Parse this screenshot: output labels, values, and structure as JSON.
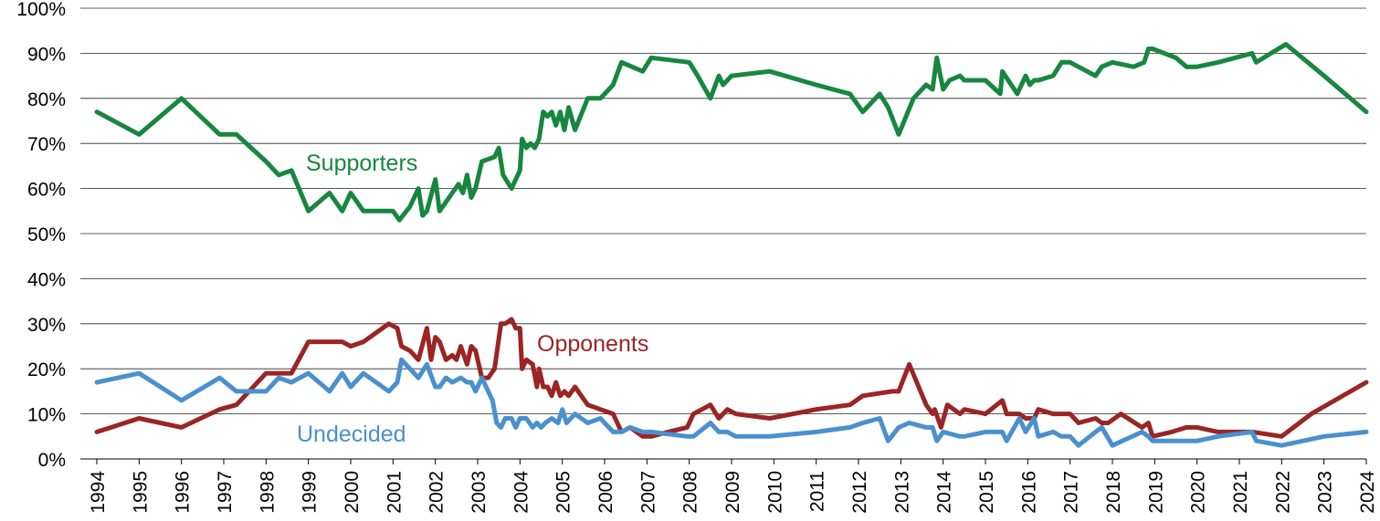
{
  "chart_data": {
    "type": "line",
    "title": "",
    "xlabel": "",
    "ylabel": "",
    "xlim": [
      1994,
      2024
    ],
    "ylim": [
      0,
      100
    ],
    "grid": true,
    "legend": "inline labels next to lines",
    "y_ticks": [
      "0%",
      "10%",
      "20%",
      "30%",
      "40%",
      "50%",
      "60%",
      "70%",
      "80%",
      "90%",
      "100%"
    ],
    "x_ticks": [
      "1994",
      "1995",
      "1996",
      "1997",
      "1998",
      "1999",
      "2000",
      "2001",
      "2002",
      "2003",
      "2004",
      "2005",
      "2006",
      "2007",
      "2008",
      "2009",
      "2010",
      "2011",
      "2012",
      "2013",
      "2014",
      "2015",
      "2016",
      "2017",
      "2018",
      "2019",
      "2020",
      "2021",
      "2022",
      "2023",
      "2024"
    ],
    "series": [
      {
        "name": "Supporters",
        "color": "#17873f",
        "x": [
          1994,
          1995,
          1996,
          1996.9,
          1997.3,
          1998,
          1998.3,
          1998.6,
          1999,
          1999.5,
          1999.8,
          2000,
          2000.3,
          2001,
          2001.15,
          2001.4,
          2001.6,
          2001.7,
          2001.8,
          2002,
          2002.1,
          2002.25,
          2002.4,
          2002.55,
          2002.65,
          2002.75,
          2002.85,
          2002.95,
          2003.1,
          2003.4,
          2003.5,
          2003.6,
          2003.8,
          2004,
          2004.05,
          2004.15,
          2004.25,
          2004.35,
          2004.45,
          2004.55,
          2004.65,
          2004.75,
          2004.85,
          2004.95,
          2005.05,
          2005.15,
          2005.3,
          2005.6,
          2005.9,
          2006.2,
          2006.4,
          2006.9,
          2007.1,
          2008,
          2008.2,
          2008.5,
          2008.7,
          2008.8,
          2009,
          2009.9,
          2011,
          2011.8,
          2012.1,
          2012.5,
          2012.7,
          2012.95,
          2013.3,
          2013.6,
          2013.75,
          2013.85,
          2014,
          2014.15,
          2014.4,
          2014.5,
          2015,
          2015.35,
          2015.4,
          2015.75,
          2015.95,
          2016.05,
          2016.15,
          2016.25,
          2016.6,
          2016.8,
          2017,
          2017.2,
          2017.6,
          2017.75,
          2018,
          2018.5,
          2018.75,
          2018.85,
          2018.95,
          2019.5,
          2019.75,
          2020,
          2020.5,
          2021.3,
          2021.4,
          2022.1,
          2023,
          2024
        ],
        "values": [
          77,
          72,
          80,
          72,
          72,
          66,
          63,
          64,
          55,
          59,
          55,
          59,
          55,
          55,
          53,
          56,
          60,
          54,
          55,
          62,
          55,
          57,
          59,
          61,
          59,
          63,
          58,
          60,
          66,
          67,
          69,
          63,
          60,
          64,
          71,
          69,
          70,
          69,
          71,
          77,
          76,
          77,
          74,
          77,
          73,
          78,
          73,
          80,
          80,
          83,
          88,
          86,
          89,
          88,
          85,
          80,
          85,
          83,
          85,
          86,
          83,
          81,
          77,
          81,
          78,
          72,
          80,
          83,
          82,
          89,
          82,
          84,
          85,
          84,
          84,
          81,
          86,
          81,
          85,
          83,
          84,
          84,
          85,
          88,
          88,
          87,
          85,
          87,
          88,
          87,
          88,
          91,
          91,
          89,
          87,
          87,
          88,
          90,
          88,
          92,
          85,
          77
        ]
      },
      {
        "name": "Opponents",
        "color": "#9b2424",
        "x": [
          1994,
          1995,
          1996,
          1996.9,
          1997.3,
          1998,
          1998.6,
          1999,
          1999.8,
          2000,
          2000.3,
          2000.9,
          2001.1,
          2001.2,
          2001.4,
          2001.6,
          2001.8,
          2001.9,
          2002,
          2002.1,
          2002.25,
          2002.4,
          2002.5,
          2002.6,
          2002.75,
          2002.85,
          2002.95,
          2003.1,
          2003.25,
          2003.4,
          2003.55,
          2003.65,
          2003.8,
          2003.9,
          2004,
          2004.05,
          2004.15,
          2004.3,
          2004.4,
          2004.45,
          2004.55,
          2004.65,
          2004.75,
          2004.85,
          2004.95,
          2005.05,
          2005.15,
          2005.3,
          2005.6,
          2005.9,
          2006.2,
          2006.4,
          2006.6,
          2006.9,
          2007.1,
          2007.5,
          2007.95,
          2008.1,
          2008.5,
          2008.7,
          2008.9,
          2009.1,
          2009.9,
          2011,
          2011.8,
          2012.1,
          2012.8,
          2012.95,
          2013.2,
          2013.6,
          2013.75,
          2013.8,
          2013.95,
          2014.1,
          2014.4,
          2014.5,
          2015,
          2015.4,
          2015.5,
          2015.8,
          2015.95,
          2016.15,
          2016.25,
          2016.6,
          2016.8,
          2017,
          2017.2,
          2017.6,
          2017.75,
          2017.9,
          2018.2,
          2018.7,
          2018.85,
          2018.95,
          2019.4,
          2019.75,
          2020,
          2020.5,
          2021.3,
          2022,
          2022.7,
          2024
        ],
        "values": [
          6,
          9,
          7,
          11,
          12,
          19,
          19,
          26,
          26,
          25,
          26,
          30,
          29,
          25,
          24,
          22,
          29,
          22,
          27,
          26,
          22,
          23,
          22,
          25,
          21,
          25,
          24,
          18,
          18,
          20,
          30,
          30,
          31,
          29,
          29,
          20,
          22,
          21,
          16,
          20,
          16,
          16,
          14,
          17,
          14,
          15,
          14,
          16,
          12,
          11,
          10,
          6,
          7,
          5,
          5,
          6,
          7,
          10,
          12,
          9,
          11,
          10,
          9,
          11,
          12,
          14,
          15,
          15,
          21,
          12,
          10,
          11,
          7,
          12,
          10,
          11,
          10,
          13,
          10,
          10,
          9,
          9,
          11,
          10,
          10,
          10,
          8,
          9,
          8,
          8,
          10,
          7,
          8,
          5,
          6,
          7,
          7,
          6,
          6,
          5,
          10,
          17
        ]
      },
      {
        "name": "Undecided",
        "color": "#4a90cf",
        "x": [
          1994,
          1995,
          1996,
          1996.9,
          1997.3,
          1998,
          1998.3,
          1998.6,
          1999,
          1999.5,
          1999.8,
          2000,
          2000.3,
          2000.9,
          2001.1,
          2001.2,
          2001.4,
          2001.6,
          2001.8,
          2002,
          2002.1,
          2002.25,
          2002.4,
          2002.6,
          2002.75,
          2002.85,
          2002.95,
          2003.1,
          2003.35,
          2003.45,
          2003.55,
          2003.65,
          2003.8,
          2003.9,
          2004,
          2004.05,
          2004.15,
          2004.3,
          2004.4,
          2004.5,
          2004.6,
          2004.75,
          2004.9,
          2005,
          2005.1,
          2005.3,
          2005.6,
          2005.9,
          2006.2,
          2006.4,
          2006.6,
          2006.9,
          2007.1,
          2007.95,
          2008.1,
          2008.5,
          2008.7,
          2008.9,
          2009.1,
          2009.9,
          2011,
          2011.8,
          2012.1,
          2012.5,
          2012.7,
          2012.95,
          2013.2,
          2013.6,
          2013.75,
          2013.85,
          2014,
          2014.4,
          2014.5,
          2015,
          2015.4,
          2015.5,
          2015.8,
          2015.95,
          2016.15,
          2016.25,
          2016.6,
          2016.8,
          2017,
          2017.2,
          2017.6,
          2017.75,
          2018,
          2018.7,
          2018.85,
          2018.95,
          2019.5,
          2019.75,
          2020,
          2020.5,
          2021.3,
          2021.4,
          2022,
          2023,
          2024
        ],
        "values": [
          17,
          19,
          13,
          18,
          15,
          15,
          18,
          17,
          19,
          15,
          19,
          16,
          19,
          15,
          17,
          22,
          20,
          18,
          21,
          16,
          16,
          18,
          17,
          18,
          17,
          17,
          15,
          18,
          13,
          8,
          7,
          9,
          9,
          7,
          9,
          9,
          9,
          7,
          8,
          7,
          8,
          9,
          8,
          11,
          8,
          10,
          8,
          9,
          6,
          6,
          7,
          6,
          6,
          5,
          5,
          8,
          6,
          6,
          5,
          5,
          6,
          7,
          8,
          9,
          4,
          7,
          8,
          7,
          7,
          4,
          6,
          5,
          5,
          6,
          6,
          4,
          9,
          6,
          9,
          5,
          6,
          5,
          5,
          3,
          6,
          7,
          3,
          6,
          5,
          4,
          4,
          4,
          4,
          5,
          6,
          4,
          3,
          5,
          6
        ]
      }
    ]
  }
}
